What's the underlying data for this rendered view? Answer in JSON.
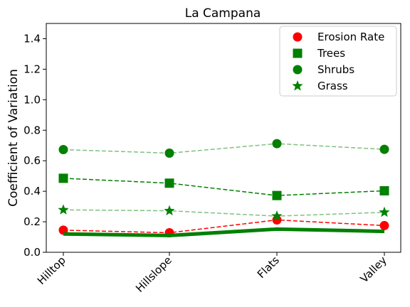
{
  "chart_data": {
    "type": "line",
    "title": "La Campana",
    "xlabel": "",
    "ylabel": "Coefficient of Variation",
    "categories": [
      "Hilltop",
      "Hillslope",
      "Flats",
      "Valley"
    ],
    "ylim": [
      0.0,
      1.5
    ],
    "yticks": [
      0.0,
      0.2,
      0.4,
      0.6,
      0.8,
      1.0,
      1.2,
      1.4
    ],
    "ytick_labels": [
      "0.0",
      "0.2",
      "0.4",
      "0.6",
      "0.8",
      "1.0",
      "1.2",
      "1.4"
    ],
    "legend_position": "top-right",
    "grid": false,
    "series": [
      {
        "name": "Erosion Rate",
        "marker": "circle",
        "color": "#ff0000",
        "line": "dashed",
        "line_color": "#ff0000",
        "values": [
          0.145,
          0.128,
          0.212,
          0.175
        ]
      },
      {
        "name": "Trees",
        "marker": "square",
        "color": "#008000",
        "line": "dashed",
        "line_color": "#008000",
        "values": [
          0.485,
          0.453,
          0.372,
          0.403
        ]
      },
      {
        "name": "Shrubs",
        "marker": "circle",
        "color": "#008000",
        "line": "dashed",
        "line_color": "#80c080",
        "values": [
          0.673,
          0.65,
          0.712,
          0.675
        ]
      },
      {
        "name": "Grass",
        "marker": "star",
        "color": "#008000",
        "line": "dashed",
        "line_color": "#80c080",
        "values": [
          0.278,
          0.272,
          0.237,
          0.262
        ]
      },
      {
        "name": "",
        "marker": "none",
        "color": "#008000",
        "line": "solid-thick",
        "line_color": "#008000",
        "values": [
          0.12,
          0.11,
          0.152,
          0.137
        ]
      }
    ]
  }
}
